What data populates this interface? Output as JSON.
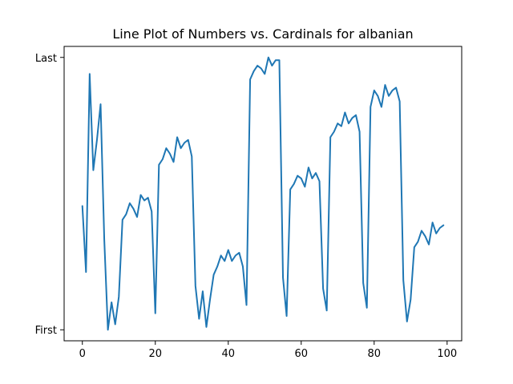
{
  "chart_data": {
    "type": "line",
    "title": "Line Plot of Numbers vs. Cardinals for albanian",
    "xlabel": "",
    "ylabel": "",
    "xlim": [
      -5,
      104
    ],
    "ylim": [
      -4,
      103
    ],
    "grid": false,
    "x_ticks": [
      0,
      20,
      40,
      60,
      80,
      100
    ],
    "y_ticks": [
      {
        "value": 0,
        "label": "First"
      },
      {
        "value": 99,
        "label": "Last"
      }
    ],
    "series": [
      {
        "color": "#1f77b4",
        "x": [
          0,
          1,
          2,
          3,
          4,
          5,
          6,
          7,
          8,
          9,
          10,
          11,
          12,
          13,
          14,
          15,
          16,
          17,
          18,
          19,
          20,
          21,
          22,
          23,
          24,
          25,
          26,
          27,
          28,
          29,
          30,
          31,
          32,
          33,
          34,
          35,
          36,
          37,
          38,
          39,
          40,
          41,
          42,
          43,
          44,
          45,
          46,
          47,
          48,
          49,
          50,
          51,
          52,
          53,
          54,
          55,
          56,
          57,
          58,
          59,
          60,
          61,
          62,
          63,
          64,
          65,
          66,
          67,
          68,
          69,
          70,
          71,
          72,
          73,
          74,
          75,
          76,
          77,
          78,
          79,
          80,
          81,
          82,
          83,
          84,
          85,
          86,
          87,
          88,
          89,
          90,
          91,
          92,
          93,
          94,
          95,
          96,
          97,
          98,
          99
        ],
        "values": [
          45,
          21,
          93,
          58,
          69,
          82,
          33,
          0,
          10,
          2,
          12,
          40,
          42,
          46,
          44,
          41,
          49,
          47,
          48,
          43,
          6,
          60,
          62,
          66,
          64,
          61,
          70,
          66,
          68,
          69,
          63,
          16,
          4,
          14,
          1,
          11,
          20,
          23,
          27,
          25,
          29,
          25,
          27,
          28,
          23,
          9,
          91,
          94,
          96,
          95,
          93,
          99,
          96,
          98,
          98,
          19,
          5,
          51,
          53,
          56,
          55,
          52,
          59,
          55,
          57,
          54,
          15,
          7,
          70,
          72,
          75,
          74,
          79,
          75,
          77,
          78,
          72,
          17,
          8,
          81,
          87,
          85,
          81,
          89,
          85,
          87,
          88,
          83,
          18,
          3,
          11,
          30,
          32,
          36,
          34,
          31,
          39,
          35,
          37,
          38
        ]
      }
    ]
  }
}
